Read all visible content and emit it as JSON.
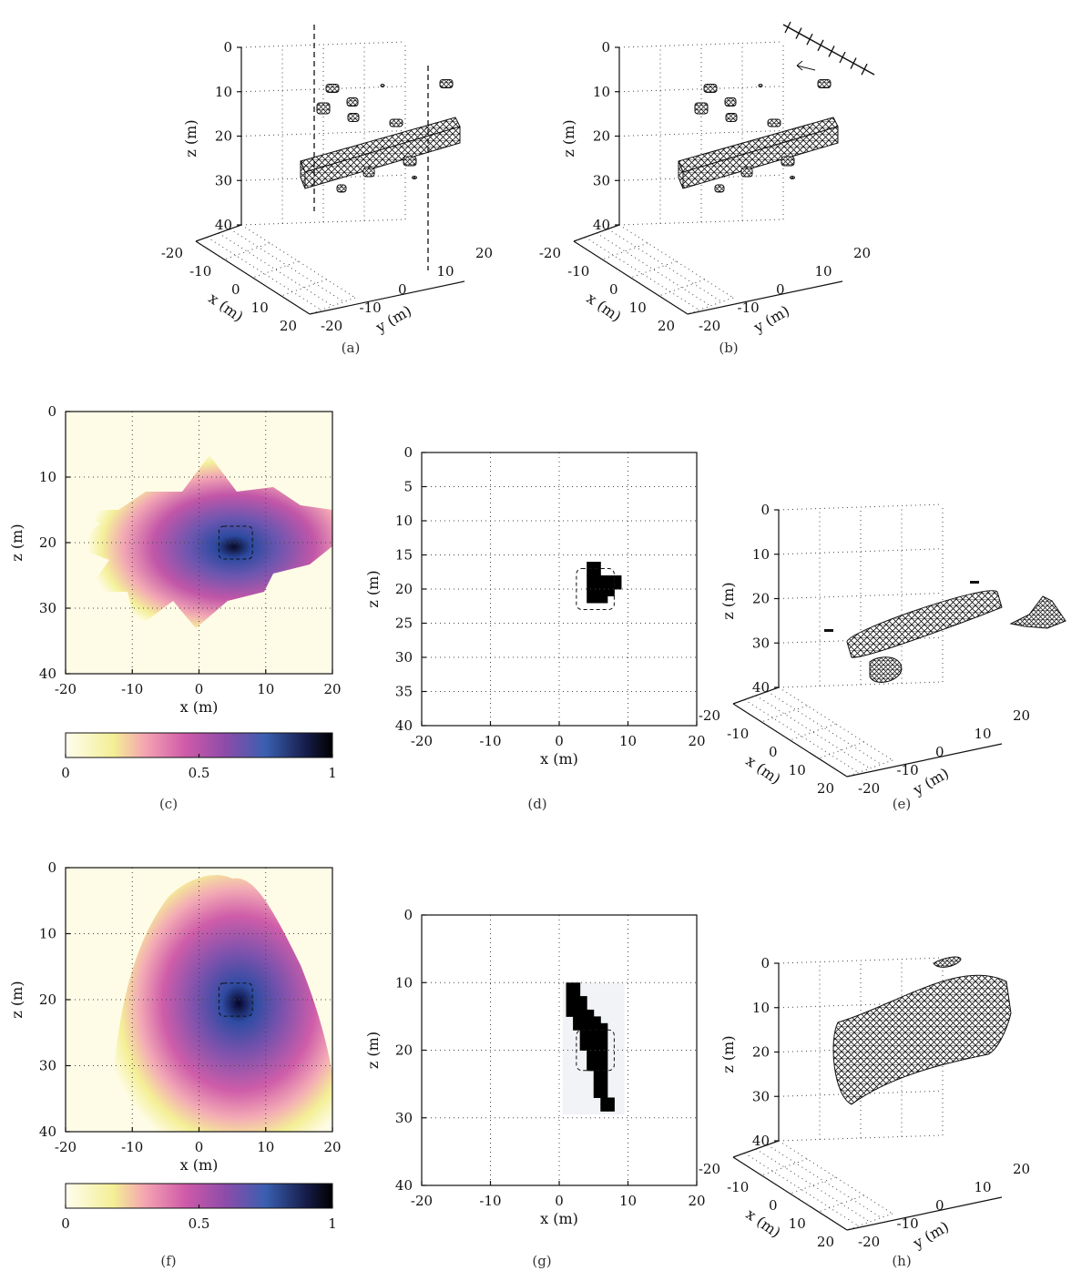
{
  "figure": {
    "panel_a": {
      "caption": "(a)"
    },
    "panel_b": {
      "caption": "(b)"
    },
    "panel_c": {
      "caption": "(c)"
    },
    "panel_d": {
      "caption": "(d)"
    },
    "panel_e": {
      "caption": "(e)"
    },
    "panel_f": {
      "caption": "(f)"
    },
    "panel_g": {
      "caption": "(g)"
    },
    "panel_h": {
      "caption": "(h)"
    },
    "axis_labels": {
      "x": "x (m)",
      "y": "y (m)",
      "z": "z (m)"
    },
    "colorbar": {
      "ticks": [
        "0",
        "0.5",
        "1"
      ],
      "colors": [
        "#fffdf0",
        "#f3ef95",
        "#f4a3b1",
        "#cf5aa9",
        "#8c4ca9",
        "#3a5fb0",
        "#161d4a",
        "#000000"
      ]
    }
  },
  "chart_data": [
    {
      "panel": "(a)",
      "type": "3d-mesh",
      "xlabel": "x (m)",
      "ylabel": "y (m)",
      "zlabel": "z (m)",
      "x_ticks": [
        "-20",
        "-10",
        "0",
        "10",
        "20"
      ],
      "y_ticks": [
        "-20",
        "-10",
        "0",
        "10",
        "20"
      ],
      "z_ticks": [
        "0",
        "10",
        "20",
        "30",
        "40"
      ]
    },
    {
      "panel": "(b)",
      "type": "3d-mesh",
      "xlabel": "x (m)",
      "ylabel": "y (m)",
      "zlabel": "z (m)",
      "x_ticks": [
        "-20",
        "-10",
        "0",
        "10",
        "20"
      ],
      "y_ticks": [
        "-20",
        "-10",
        "0",
        "10",
        "20"
      ],
      "z_ticks": [
        "0",
        "10",
        "20",
        "30",
        "40"
      ]
    },
    {
      "panel": "(c)",
      "type": "heatmap",
      "xlabel": "x (m)",
      "ylabel": "z (m)",
      "xlim": [
        -20,
        20
      ],
      "ylim": [
        0,
        40
      ],
      "x_ticks": [
        "-20",
        "-10",
        "0",
        "10",
        "20"
      ],
      "y_ticks": [
        "0",
        "10",
        "20",
        "30",
        "40"
      ],
      "colorbar_range": [
        0,
        1
      ],
      "target_box": {
        "x": [
          3,
          8
        ],
        "z": [
          17,
          22
        ]
      }
    },
    {
      "panel": "(d)",
      "type": "heatmap",
      "xlabel": "x (m)",
      "ylabel": "z (m)",
      "xlim": [
        -20,
        20
      ],
      "ylim": [
        0,
        40
      ],
      "x_ticks": [
        "-20",
        "-10",
        "0",
        "10",
        "20"
      ],
      "y_ticks": [
        "0",
        "5",
        "10",
        "15",
        "20",
        "25",
        "30",
        "35",
        "40"
      ],
      "cells": [
        [
          4,
          16
        ],
        [
          5,
          16
        ],
        [
          4,
          17
        ],
        [
          5,
          17
        ],
        [
          4,
          18
        ],
        [
          5,
          18
        ],
        [
          6,
          18
        ],
        [
          7,
          18
        ],
        [
          8,
          18
        ],
        [
          4,
          19
        ],
        [
          5,
          19
        ],
        [
          6,
          19
        ],
        [
          7,
          19
        ],
        [
          8,
          19
        ],
        [
          4,
          20
        ],
        [
          5,
          20
        ],
        [
          6,
          20
        ],
        [
          7,
          20
        ],
        [
          4,
          21
        ],
        [
          5,
          21
        ],
        [
          6,
          21
        ]
      ]
    },
    {
      "panel": "(e)",
      "type": "3d-mesh",
      "xlabel": "x (m)",
      "ylabel": "y (m)",
      "zlabel": "z (m)",
      "x_ticks": [
        "-20",
        "-10",
        "0",
        "10",
        "20"
      ],
      "y_ticks": [
        "-20",
        "-10",
        "0",
        "10",
        "20"
      ],
      "z_ticks": [
        "0",
        "10",
        "20",
        "30",
        "40"
      ]
    },
    {
      "panel": "(f)",
      "type": "heatmap",
      "xlabel": "x (m)",
      "ylabel": "z (m)",
      "xlim": [
        -20,
        20
      ],
      "ylim": [
        0,
        40
      ],
      "x_ticks": [
        "-20",
        "-10",
        "0",
        "10",
        "20"
      ],
      "y_ticks": [
        "0",
        "10",
        "20",
        "30",
        "40"
      ],
      "colorbar_range": [
        0,
        1
      ],
      "target_box": {
        "x": [
          3,
          8
        ],
        "z": [
          17,
          22
        ]
      }
    },
    {
      "panel": "(g)",
      "type": "heatmap",
      "xlabel": "x (m)",
      "ylabel": "z (m)",
      "xlim": [
        -20,
        20
      ],
      "ylim": [
        0,
        40
      ],
      "x_ticks": [
        "-20",
        "-10",
        "0",
        "10",
        "20"
      ],
      "y_ticks": [
        "0",
        "10",
        "20",
        "30",
        "40"
      ],
      "cells": [
        [
          1,
          10
        ],
        [
          2,
          10
        ],
        [
          1,
          11
        ],
        [
          2,
          11
        ],
        [
          1,
          12
        ],
        [
          2,
          12
        ],
        [
          3,
          12
        ],
        [
          1,
          13
        ],
        [
          2,
          13
        ],
        [
          3,
          13
        ],
        [
          1,
          14
        ],
        [
          2,
          14
        ],
        [
          3,
          14
        ],
        [
          4,
          14
        ],
        [
          2,
          15
        ],
        [
          3,
          15
        ],
        [
          4,
          15
        ],
        [
          5,
          15
        ],
        [
          2,
          16
        ],
        [
          3,
          16
        ],
        [
          4,
          16
        ],
        [
          5,
          16
        ],
        [
          6,
          16
        ],
        [
          3,
          17
        ],
        [
          4,
          17
        ],
        [
          5,
          17
        ],
        [
          6,
          17
        ],
        [
          3,
          18
        ],
        [
          4,
          18
        ],
        [
          5,
          18
        ],
        [
          6,
          18
        ],
        [
          3,
          19
        ],
        [
          4,
          19
        ],
        [
          5,
          19
        ],
        [
          6,
          19
        ],
        [
          4,
          20
        ],
        [
          5,
          20
        ],
        [
          6,
          20
        ],
        [
          4,
          21
        ],
        [
          5,
          21
        ],
        [
          6,
          21
        ],
        [
          4,
          22
        ],
        [
          5,
          22
        ],
        [
          6,
          22
        ],
        [
          5,
          23
        ],
        [
          6,
          23
        ],
        [
          5,
          24
        ],
        [
          6,
          24
        ],
        [
          5,
          25
        ],
        [
          6,
          25
        ],
        [
          5,
          26
        ],
        [
          6,
          26
        ],
        [
          6,
          27
        ],
        [
          7,
          27
        ],
        [
          6,
          28
        ],
        [
          7,
          28
        ]
      ]
    },
    {
      "panel": "(h)",
      "type": "3d-mesh",
      "xlabel": "x (m)",
      "ylabel": "y (m)",
      "zlabel": "z (m)",
      "x_ticks": [
        "-20",
        "-10",
        "0",
        "10",
        "20"
      ],
      "y_ticks": [
        "-20",
        "-10",
        "0",
        "10",
        "20"
      ],
      "z_ticks": [
        "0",
        "10",
        "20",
        "30",
        "40"
      ]
    }
  ]
}
